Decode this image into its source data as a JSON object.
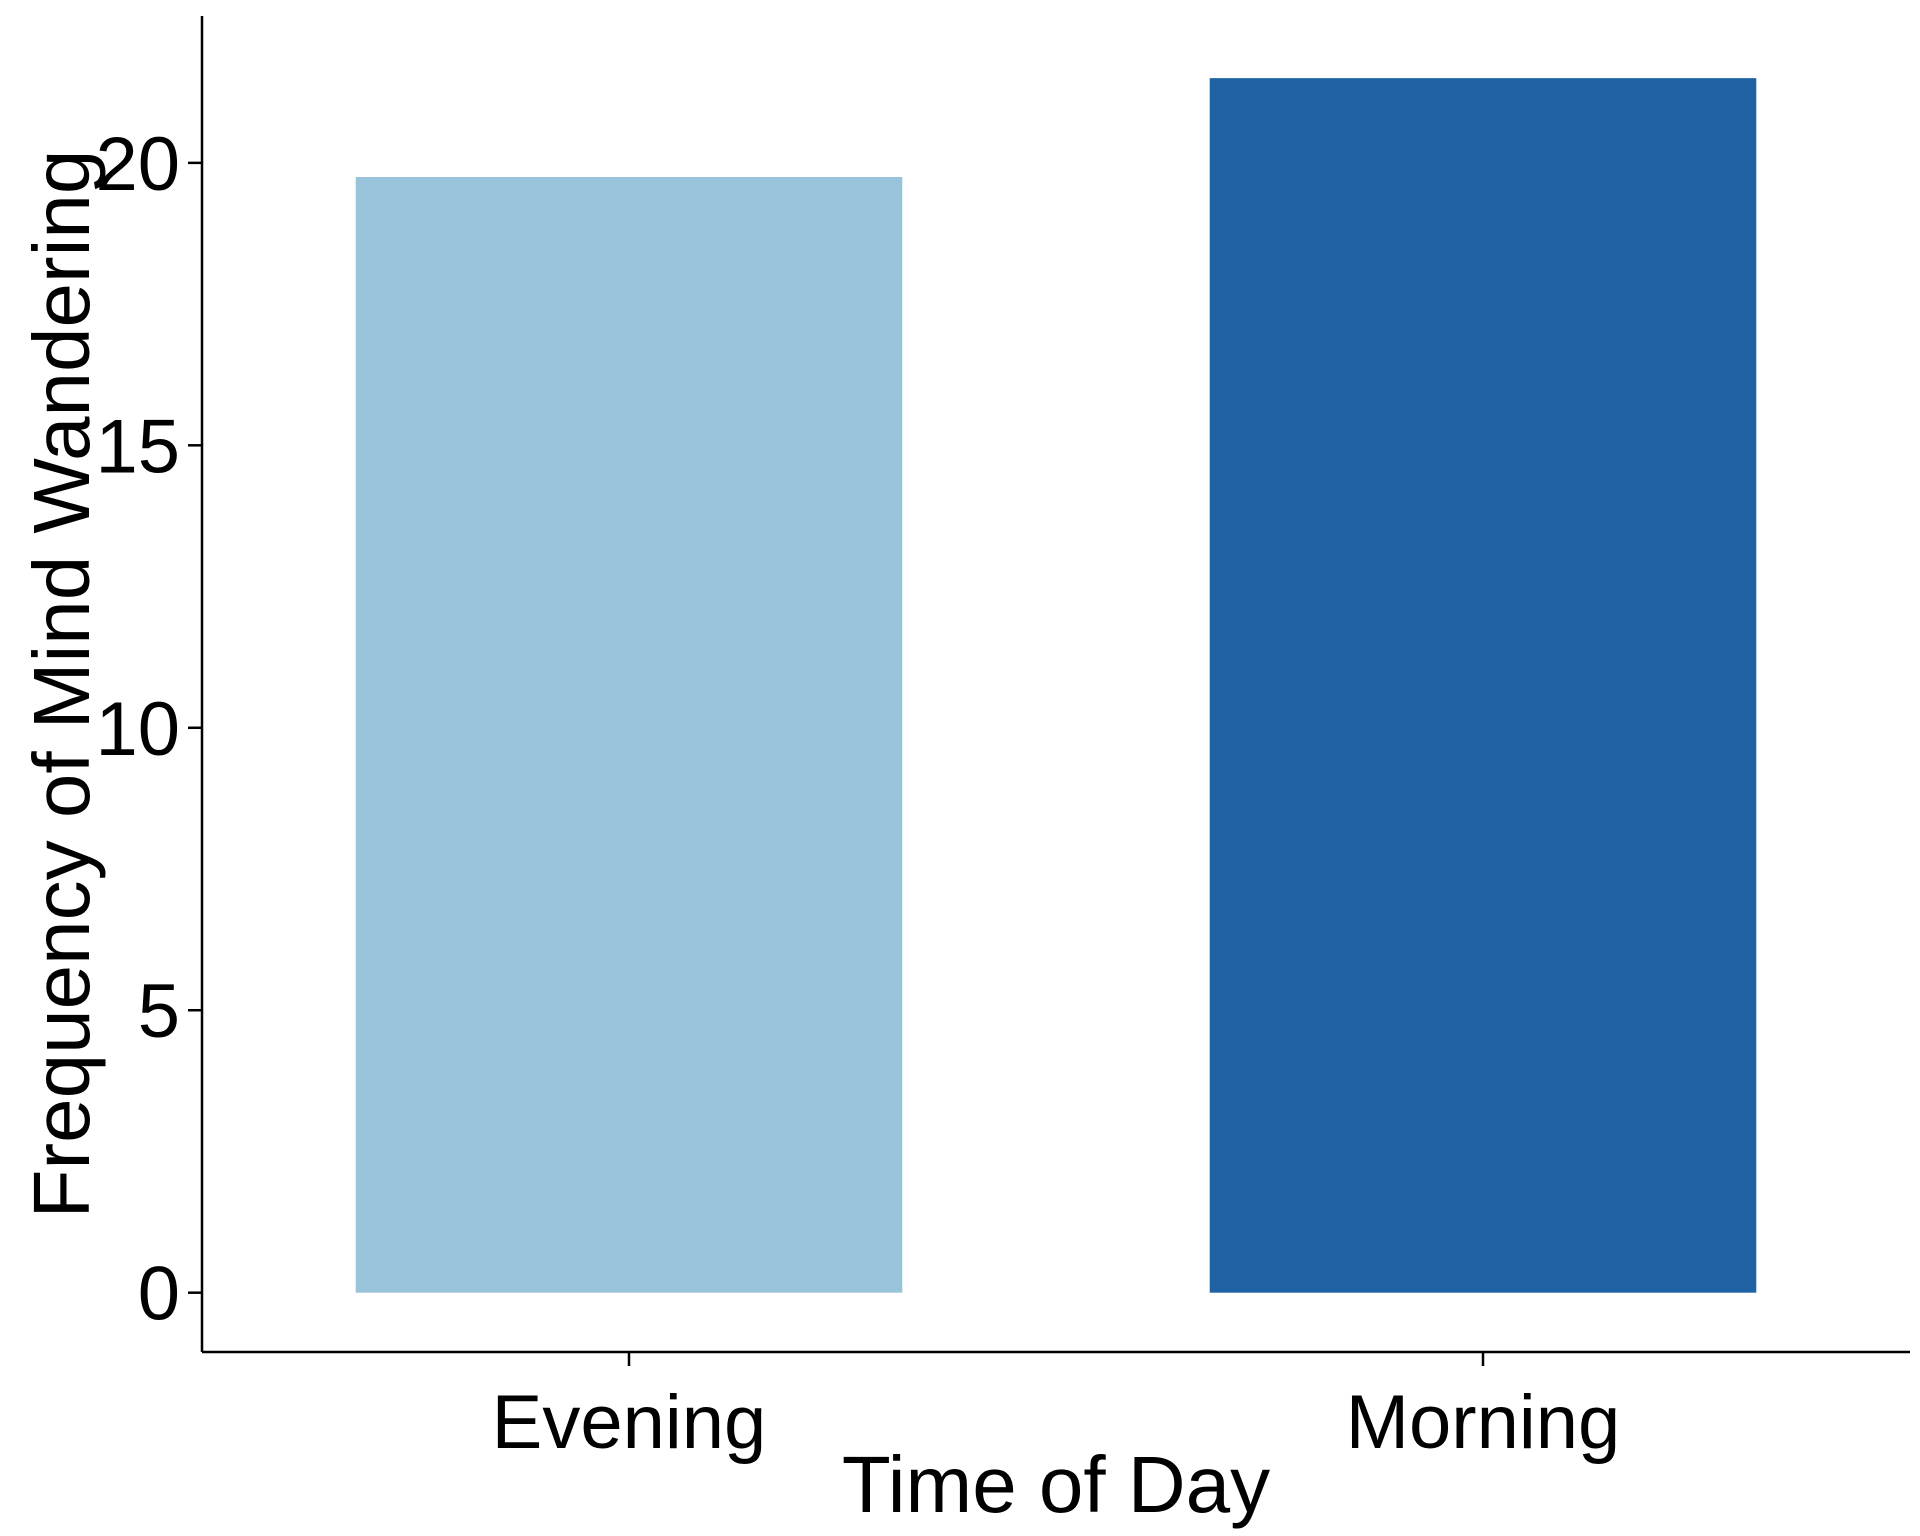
{
  "chart_data": {
    "type": "bar",
    "categories": [
      "Evening",
      "Morning"
    ],
    "series": [
      {
        "values": [
          19.75,
          21.5
        ]
      }
    ],
    "bar_colors": [
      "#98C3DB",
      "#1F62A4"
    ],
    "xlabel": "Time of Day",
    "ylabel": "Frequency of Mind Wandering",
    "ylim": [
      -1.05,
      22.6
    ],
    "yticks": [
      0,
      5,
      10,
      15,
      20
    ],
    "grid": false,
    "legend": "none"
  }
}
